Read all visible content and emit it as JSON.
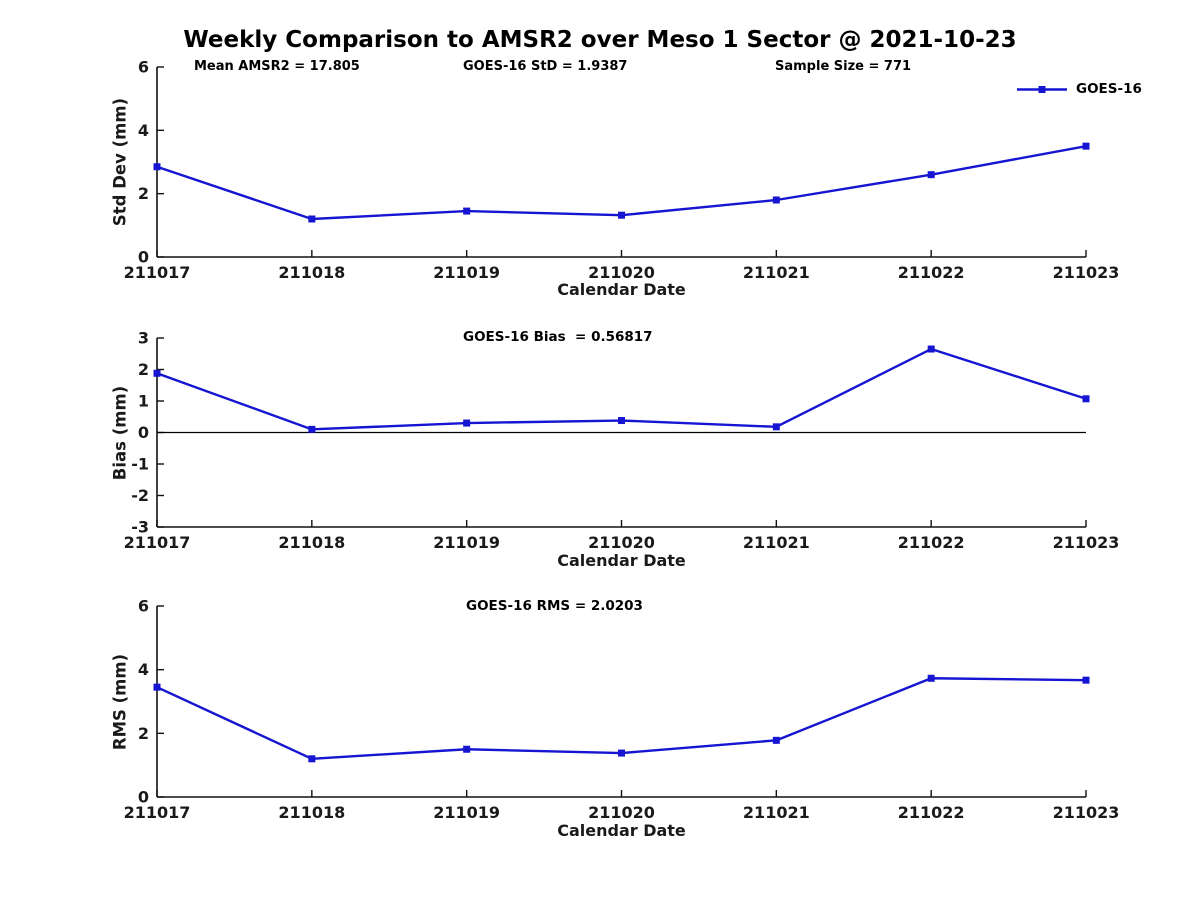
{
  "page": {
    "title": "Weekly Comparison to AMSR2 over Meso 1 Sector @ 2021-10-23"
  },
  "legend": {
    "label": "GOES-16",
    "line_color": "#1515d2"
  },
  "chart_data": [
    {
      "type": "line",
      "name": "std-dev",
      "title": "",
      "categories": [
        "211017",
        "211018",
        "211019",
        "211020",
        "211021",
        "211022",
        "211023"
      ],
      "series": [
        {
          "name": "GOES-16",
          "color": "#1515d2",
          "marker": "square",
          "values": [
            2.85,
            1.2,
            1.45,
            1.32,
            1.8,
            2.6,
            3.5
          ]
        }
      ],
      "xlabel": "Calendar Date",
      "ylabel": "Std Dev (mm)",
      "ylim": [
        0,
        6
      ],
      "yticks": [
        0,
        2,
        4,
        6
      ],
      "grid": false,
      "legend_position": "upper-right",
      "annotations": [
        "Mean AMSR2 = 17.805",
        "GOES-16 StD = 1.9387",
        "Sample Size = 771"
      ]
    },
    {
      "type": "line",
      "name": "bias",
      "title": "GOES-16 Bias  = 0.56817",
      "categories": [
        "211017",
        "211018",
        "211019",
        "211020",
        "211021",
        "211022",
        "211023"
      ],
      "series": [
        {
          "name": "GOES-16",
          "color": "#1515d2",
          "marker": "square",
          "values": [
            1.88,
            0.1,
            0.3,
            0.38,
            0.18,
            2.65,
            1.07
          ]
        }
      ],
      "xlabel": "Calendar Date",
      "ylabel": "Bias (mm)",
      "ylim": [
        -3,
        3
      ],
      "yticks": [
        -3,
        -2,
        -1,
        0,
        1,
        2,
        3
      ],
      "zero_line": true,
      "grid": false
    },
    {
      "type": "line",
      "name": "rms",
      "title": "GOES-16 RMS = 2.0203",
      "categories": [
        "211017",
        "211018",
        "211019",
        "211020",
        "211021",
        "211022",
        "211023"
      ],
      "series": [
        {
          "name": "GOES-16",
          "color": "#1515d2",
          "marker": "square",
          "values": [
            3.45,
            1.2,
            1.5,
            1.38,
            1.78,
            3.73,
            3.67
          ]
        }
      ],
      "xlabel": "Calendar Date",
      "ylabel": "RMS (mm)",
      "ylim": [
        0,
        6
      ],
      "yticks": [
        0,
        2,
        4,
        6
      ],
      "grid": false
    }
  ]
}
